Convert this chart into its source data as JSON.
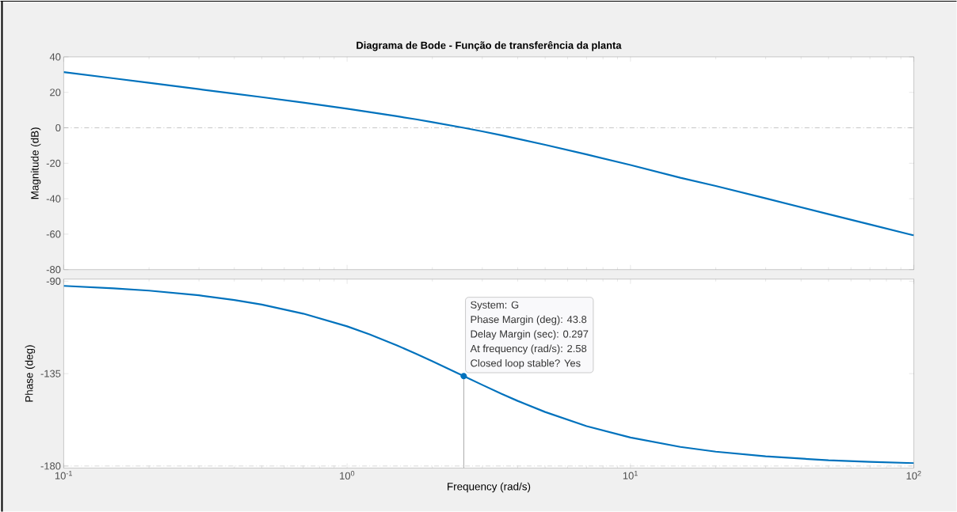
{
  "chart_data": [
    {
      "type": "line",
      "title": "Diagrama de Bode - Função de transferência da planta",
      "ylabel": "Magnitude (dB)",
      "log": "x",
      "tick_labels": "y",
      "x": [
        0.1,
        0.15,
        0.2,
        0.3,
        0.4,
        0.5,
        0.7,
        1,
        1.2,
        1.5,
        1.75,
        2,
        2.58,
        3,
        3.5,
        4,
        5,
        7,
        10,
        15,
        20,
        30,
        50,
        70,
        100
      ],
      "series": [
        {
          "color": "#0072bd",
          "values": [
            31.4,
            27.9,
            25.4,
            21.8,
            19.3,
            17.3,
            14.2,
            10.8,
            8.9,
            6.5,
            4.8,
            3.2,
            0,
            -2.0,
            -4.2,
            -6.2,
            -9.6,
            -15.0,
            -21.0,
            -28.2,
            -32.8,
            -39.8,
            -48.7,
            -54.5,
            -60.7
          ]
        }
      ],
      "xlim": [
        0.1,
        100
      ],
      "xticks": [
        0.1,
        1,
        10,
        100
      ],
      "ylim": [
        -80,
        40
      ],
      "yticks": [
        -80,
        -60,
        -40,
        -20,
        0,
        20,
        40
      ],
      "ref_lines": [
        {
          "axis": "y",
          "value": 0,
          "color": "#808080",
          "line_style": "dashdot"
        }
      ]
    },
    {
      "type": "line",
      "ylabel": "Phase (deg)",
      "xlabel": "Frequency  (rad/s)",
      "log": "x",
      "x": [
        0.1,
        0.15,
        0.2,
        0.3,
        0.4,
        0.5,
        0.7,
        1,
        1.2,
        1.5,
        1.75,
        2,
        2.58,
        3,
        3.5,
        4,
        5,
        7,
        10,
        15,
        20,
        30,
        50,
        70,
        100
      ],
      "series": [
        {
          "color": "#0072bd",
          "values": [
            -92.3,
            -93.5,
            -94.6,
            -96.9,
            -99.2,
            -101.4,
            -105.8,
            -112.0,
            -115.9,
            -121.3,
            -125.3,
            -129.0,
            -136.2,
            -140.5,
            -144.8,
            -148.3,
            -153.7,
            -160.6,
            -166.1,
            -170.7,
            -173.0,
            -175.3,
            -177.2,
            -178.0,
            -178.6
          ]
        }
      ],
      "xlim": [
        0.1,
        100
      ],
      "xticks": [
        {
          "value": 0.1,
          "label": "10$^{-1}$"
        },
        {
          "value": 1,
          "label": "10$^{0}$"
        },
        {
          "value": 10,
          "label": "10$^{1}$"
        },
        {
          "value": 100,
          "label": "10$^{2}$"
        }
      ],
      "ylim": [
        -181,
        -89
      ],
      "yticks": [
        -180,
        -135,
        -90
      ],
      "ref_lines": [
        {
          "axis": "y",
          "value": -180,
          "color": "#808080",
          "line_style": "dashdot"
        }
      ],
      "annotations": [
        "System: G",
        "Phase Margin (deg): 43.8",
        "Delay Margin (sec): 0.297",
        "At frequency (rad/s): 2.58",
        {
          "text": "Closed loop stable? Yes",
          "x": 2.58,
          "y": -136.2
        }
      ]
    }
  ]
}
